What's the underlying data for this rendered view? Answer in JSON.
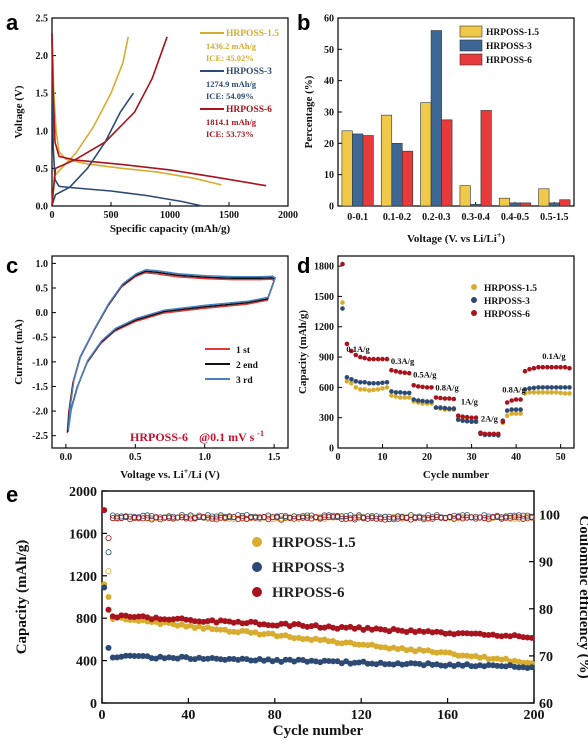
{
  "colors": {
    "p15": "#d8ac2e",
    "p3": "#2c4a73",
    "p6": "#a8141e",
    "bar15": "#f0c94a",
    "bar3": "#3d6795",
    "bar6": "#e83a3a",
    "cycle1": "#e03a3a",
    "cycle2": "#111111",
    "cycle3": "#4a7fc0"
  },
  "chart_data": [
    {
      "panel": "a",
      "type": "line",
      "xlabel": "Specific capacity (mAh/g)",
      "ylabel": "Voltage (V)",
      "xlim": [
        0,
        2000
      ],
      "ylim": [
        0,
        2.5
      ],
      "xticks": [
        0,
        500,
        1000,
        1500,
        2000
      ],
      "yticks": [
        0.0,
        0.5,
        1.0,
        1.5,
        2.0,
        2.5
      ],
      "legend": [
        {
          "name": "HRPOSS-1.5",
          "capacity": "1436.2 mAh/g",
          "ice": "ICE: 45.02%"
        },
        {
          "name": "HRPOSS-3",
          "capacity": "1274.9 mAh/g",
          "ice": "ICE: 54.09%"
        },
        {
          "name": "HRPOSS-6",
          "capacity": "1814.1 mAh/g",
          "ice": "ICE: 53.73%"
        }
      ],
      "series": [
        {
          "name": "HRPOSS-1.5",
          "discharge": [
            [
              0,
              2.3
            ],
            [
              15,
              1.5
            ],
            [
              35,
              1.0
            ],
            [
              60,
              0.72
            ],
            [
              120,
              0.62
            ],
            [
              300,
              0.56
            ],
            [
              600,
              0.5
            ],
            [
              900,
              0.45
            ],
            [
              1200,
              0.37
            ],
            [
              1436,
              0.28
            ]
          ],
          "charge": [
            [
              0,
              0.01
            ],
            [
              20,
              0.4
            ],
            [
              80,
              0.5
            ],
            [
              200,
              0.7
            ],
            [
              350,
              1.05
            ],
            [
              500,
              1.5
            ],
            [
              600,
              1.9
            ],
            [
              646,
              2.25
            ]
          ]
        },
        {
          "name": "HRPOSS-3",
          "discharge": [
            [
              0,
              2.3
            ],
            [
              10,
              0.8
            ],
            [
              25,
              0.35
            ],
            [
              60,
              0.26
            ],
            [
              200,
              0.24
            ],
            [
              500,
              0.2
            ],
            [
              800,
              0.14
            ],
            [
              1100,
              0.06
            ],
            [
              1275,
              0.0
            ]
          ],
          "charge": [
            [
              0,
              0.01
            ],
            [
              30,
              0.15
            ],
            [
              150,
              0.25
            ],
            [
              300,
              0.5
            ],
            [
              450,
              0.85
            ],
            [
              580,
              1.25
            ],
            [
              690,
              1.5
            ]
          ]
        },
        {
          "name": "HRPOSS-6",
          "discharge": [
            [
              0,
              2.3
            ],
            [
              10,
              1.5
            ],
            [
              25,
              0.85
            ],
            [
              60,
              0.66
            ],
            [
              200,
              0.61
            ],
            [
              600,
              0.55
            ],
            [
              1000,
              0.48
            ],
            [
              1400,
              0.38
            ],
            [
              1814,
              0.27
            ]
          ],
          "charge": [
            [
              0,
              0.01
            ],
            [
              30,
              0.5
            ],
            [
              200,
              0.62
            ],
            [
              450,
              0.85
            ],
            [
              700,
              1.25
            ],
            [
              850,
              1.7
            ],
            [
              975,
              2.25
            ]
          ]
        }
      ]
    },
    {
      "panel": "b",
      "type": "bar",
      "xlabel": "Voltage (V. vs Li/Li⁺)",
      "ylabel": "Percentage (%)",
      "ylim": [
        0,
        60
      ],
      "yticks": [
        0,
        10,
        20,
        30,
        40,
        50,
        60
      ],
      "categories": [
        "0-0.1",
        "0.1-0.2",
        "0.2-0.3",
        "0.3-0.4",
        "0.4-0.5",
        "0.5-1.5"
      ],
      "series": [
        {
          "name": "HRPOSS-1.5",
          "values": [
            24,
            29,
            33,
            6.5,
            2.5,
            5.5
          ]
        },
        {
          "name": "HRPOSS-3",
          "values": [
            23,
            20,
            56,
            0.5,
            1.0,
            1.0
          ]
        },
        {
          "name": "HRPOSS-6",
          "values": [
            22.5,
            17.5,
            27.5,
            30.5,
            1.0,
            2.0
          ]
        }
      ]
    },
    {
      "panel": "c",
      "type": "line",
      "xlabel": "Voltage vs. Li⁺/Li (V)",
      "ylabel": "Current (mA)",
      "xlim": [
        -0.1,
        1.6
      ],
      "ylim": [
        -2.75,
        1.15
      ],
      "xticks": [
        0.0,
        0.5,
        1.0,
        1.5
      ],
      "yticks": [
        1.0,
        0.5,
        0.0,
        -0.5,
        -1.0,
        -1.5,
        -2.0,
        -2.5
      ],
      "annotation": "HRPOSS-6",
      "annotation_rate": "@0.1 mV s",
      "annotation_rate_sup": "-1",
      "legend": [
        "1 st",
        "2 end",
        "3 rd"
      ],
      "cv_cycle": [
        [
          0.01,
          -2.42
        ],
        [
          0.02,
          -2.0
        ],
        [
          0.05,
          -1.4
        ],
        [
          0.1,
          -0.9
        ],
        [
          0.2,
          -0.35
        ],
        [
          0.3,
          0.15
        ],
        [
          0.4,
          0.55
        ],
        [
          0.5,
          0.76
        ],
        [
          0.57,
          0.84
        ],
        [
          0.65,
          0.82
        ],
        [
          0.8,
          0.76
        ],
        [
          1.0,
          0.72
        ],
        [
          1.2,
          0.7
        ],
        [
          1.4,
          0.7
        ],
        [
          1.48,
          0.71
        ],
        [
          1.5,
          0.68
        ],
        [
          1.45,
          0.28
        ],
        [
          1.3,
          0.2
        ],
        [
          1.0,
          0.12
        ],
        [
          0.7,
          0.02
        ],
        [
          0.5,
          -0.15
        ],
        [
          0.35,
          -0.35
        ],
        [
          0.25,
          -0.6
        ],
        [
          0.15,
          -1.0
        ],
        [
          0.08,
          -1.5
        ],
        [
          0.03,
          -2.0
        ],
        [
          0.01,
          -2.42
        ]
      ]
    },
    {
      "panel": "d",
      "type": "scatter",
      "xlabel": "Cycle number",
      "ylabel": "Capacity (mAh/g)",
      "xlim": [
        0,
        53
      ],
      "ylim": [
        0,
        1900
      ],
      "xticks": [
        0,
        10,
        20,
        30,
        40,
        50
      ],
      "yticks": [
        0,
        300,
        600,
        900,
        1200,
        1500,
        1800
      ],
      "rate_labels": [
        {
          "text": "0.1A/g",
          "x": 4.5,
          "y": 950
        },
        {
          "text": "0.3A/g",
          "x": 14.5,
          "y": 830
        },
        {
          "text": "0.5A/g",
          "x": 19.5,
          "y": 700
        },
        {
          "text": "0.8A/g",
          "x": 24.5,
          "y": 570
        },
        {
          "text": "1A/g",
          "x": 29.5,
          "y": 430
        },
        {
          "text": "2A/g",
          "x": 34,
          "y": 260
        },
        {
          "text": "0.8A/g",
          "x": 39.5,
          "y": 550
        },
        {
          "text": "0.1A/g",
          "x": 48.5,
          "y": 880
        }
      ],
      "series": [
        {
          "name": "HRPOSS-1.5",
          "y": [
            1440,
            660,
            640,
            600,
            580,
            580,
            570,
            575,
            580,
            590,
            600,
            520,
            510,
            500,
            500,
            500,
            460,
            450,
            440,
            440,
            440,
            400,
            390,
            380,
            380,
            380,
            290,
            280,
            270,
            270,
            270,
            150,
            140,
            140,
            140,
            140,
            250,
            320,
            340,
            340,
            340,
            540,
            550,
            550,
            550,
            550,
            550,
            550,
            550,
            545,
            540,
            540
          ]
        },
        {
          "name": "HRPOSS-3",
          "y": [
            1380,
            700,
            680,
            660,
            650,
            650,
            640,
            640,
            640,
            645,
            650,
            560,
            550,
            550,
            545,
            545,
            480,
            470,
            465,
            460,
            460,
            400,
            400,
            395,
            390,
            390,
            280,
            270,
            265,
            260,
            260,
            140,
            130,
            130,
            130,
            125,
            270,
            370,
            380,
            380,
            380,
            580,
            590,
            595,
            600,
            600,
            600,
            600,
            600,
            600,
            600,
            600
          ]
        },
        {
          "name": "HRPOSS-6",
          "y": [
            1820,
            1030,
            960,
            920,
            900,
            890,
            880,
            880,
            880,
            880,
            880,
            770,
            760,
            750,
            745,
            740,
            620,
            610,
            605,
            600,
            600,
            500,
            495,
            490,
            490,
            485,
            320,
            310,
            305,
            300,
            300,
            150,
            140,
            140,
            140,
            140,
            260,
            450,
            470,
            480,
            480,
            760,
            780,
            790,
            800,
            800,
            800,
            800,
            800,
            800,
            800,
            790
          ]
        }
      ]
    },
    {
      "panel": "e",
      "type": "scatter",
      "xlabel": "Cycle number",
      "ylabel": "Capacity (mAh/g)",
      "y2label": "Coulombic efficiency (%)",
      "xlim": [
        0,
        200
      ],
      "ylim": [
        0,
        2000
      ],
      "y2lim": [
        60,
        105
      ],
      "xticks": [
        0,
        40,
        80,
        120,
        160,
        200
      ],
      "yticks": [
        0,
        400,
        800,
        1200,
        1600,
        2000
      ],
      "y2ticks": [
        60,
        70,
        80,
        90,
        100
      ],
      "legend": [
        "HRPOSS-1.5",
        "HRPOSS-3",
        "HRPOSS-6"
      ],
      "series": [
        {
          "name": "HRPOSS-1.5",
          "first_capacities": [
            1120,
            1080,
            1000,
            850
          ],
          "capacity_start": 800,
          "capacity_end": 380,
          "ce_first": [
            45,
            75,
            88
          ],
          "ce": 99.3
        },
        {
          "name": "HRPOSS-3",
          "first_capacities": [
            1090,
            680,
            520,
            450
          ],
          "capacity_start": 440,
          "capacity_end": 340,
          "ce_first": [
            54,
            82,
            92
          ],
          "ce": 99.6
        },
        {
          "name": "HRPOSS-6",
          "first_capacities": [
            1820,
            1700,
            880,
            830
          ],
          "capacity_start": 820,
          "capacity_end": 620,
          "ce_first": [
            54,
            86,
            95
          ],
          "ce": 99.2
        }
      ]
    }
  ]
}
